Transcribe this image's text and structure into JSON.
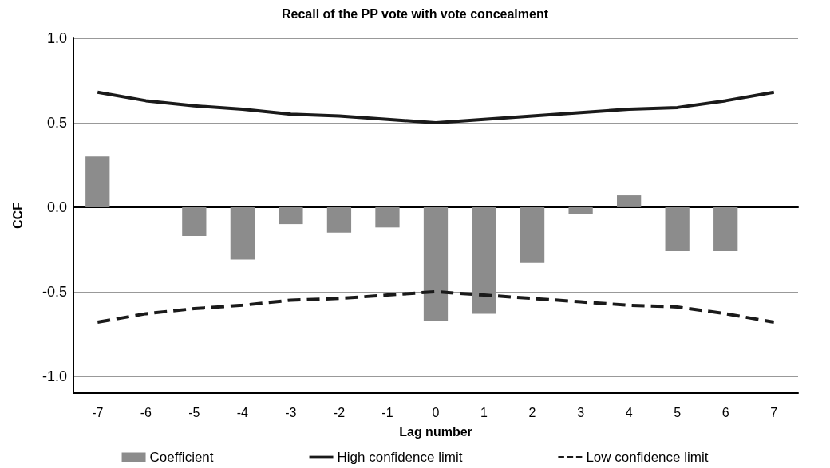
{
  "chart_data": {
    "type": "bar",
    "title": "Recall of the PP vote with vote concealment",
    "xlabel": "Lag number",
    "ylabel": "CCF",
    "categories": [
      "-7",
      "-6",
      "-5",
      "-4",
      "-3",
      "-2",
      "-1",
      "0",
      "1",
      "2",
      "3",
      "4",
      "5",
      "6",
      "7"
    ],
    "series": [
      {
        "name": "Coefficient",
        "color": "#8c8c8c",
        "values": [
          0.3,
          0,
          -0.17,
          -0.31,
          -0.1,
          -0.15,
          -0.12,
          -0.67,
          -0.63,
          -0.33,
          -0.04,
          0.07,
          -0.26,
          -0.26,
          0
        ]
      },
      {
        "name": "High confidence limit",
        "type": "line",
        "color": "#1a1a1a",
        "line_style": "solid",
        "values": [
          0.68,
          0.63,
          0.6,
          0.58,
          0.55,
          0.54,
          0.52,
          0.5,
          0.52,
          0.54,
          0.56,
          0.58,
          0.59,
          0.63,
          0.68
        ]
      },
      {
        "name": "Low confidence limit",
        "type": "line",
        "color": "#1a1a1a",
        "line_style": "dashed",
        "values": [
          -0.68,
          -0.63,
          -0.6,
          -0.58,
          -0.55,
          -0.54,
          -0.52,
          -0.5,
          -0.52,
          -0.54,
          -0.56,
          -0.58,
          -0.59,
          -0.63,
          -0.68
        ]
      }
    ],
    "ylim": [
      -1.1,
      1.0
    ],
    "yticks": [
      {
        "value": -1,
        "label": "-1.0"
      },
      {
        "value": -0.5,
        "label": "-0.5"
      },
      {
        "value": 0,
        "label": "0.0"
      },
      {
        "value": 0.5,
        "label": "0.5"
      },
      {
        "value": 1,
        "label": "1.0"
      }
    ],
    "grid": "y",
    "legend": "bottom",
    "marker": "none"
  }
}
